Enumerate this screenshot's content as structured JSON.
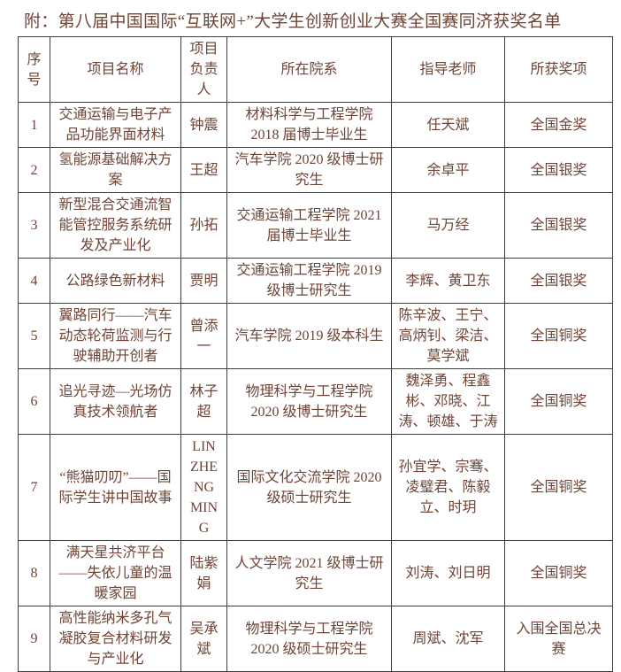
{
  "title": "附：第八届中国国际“互联网+”大学生创新创业大赛全国赛同济获奖名单",
  "colors": {
    "text": "#6e4437",
    "border": "#3d3d3d",
    "background": "#ffffff"
  },
  "table": {
    "headers": [
      "序号",
      "项目名称",
      "项目负责人",
      "所在院系",
      "指导老师",
      "所获奖项"
    ],
    "rows": [
      [
        "1",
        "交通运输与电子产品功能界面材料",
        "钟震",
        "材料科学与工程学院 2018 届博士毕业生",
        "任天斌",
        "全国金奖"
      ],
      [
        "2",
        "氢能源基础解决方案",
        "王超",
        "汽车学院 2020 级博士研究生",
        "余卓平",
        "全国银奖"
      ],
      [
        "3",
        "新型混合交通流智能管控服务系统研发及产业化",
        "孙拓",
        "交通运输工程学院 2021 届博士毕业生",
        "马万经",
        "全国银奖"
      ],
      [
        "4",
        "公路绿色新材料",
        "贾明",
        "交通运输工程学院 2019 级博士研究生",
        "李辉、黄卫东",
        "全国银奖"
      ],
      [
        "5",
        "翼路同行——汽车动态轮荷监测与行驶辅助开创者",
        "曾添一",
        "汽车学院 2019 级本科生",
        "陈辛波、王宁、高炳钊、梁洁、莫学斌",
        "全国铜奖"
      ],
      [
        "6",
        "追光寻迹—光场仿真技术领航者",
        "林子超",
        "物理科学与工程学院 2020 级博士研究生",
        "魏泽勇、程鑫彬、邓晓、江涛、顿雄、于涛",
        "全国铜奖"
      ],
      [
        "7",
        "“熊猫叨叨”——国际学生讲中国故事",
        "LIN ZHENG MING",
        "国际文化交流学院 2020 级硕士研究生",
        "孙宜学、宗骞、凌璧君、陈毅立、时玥",
        "全国铜奖"
      ],
      [
        "8",
        "满天星共济平台——失依儿童的温暖家园",
        "陆紫娟",
        "人文学院 2021 级博士研究生",
        "刘涛、刘日明",
        "全国铜奖"
      ],
      [
        "9",
        "高性能纳米多孔气凝胶复合材料研发与产业化",
        "吴承斌",
        "物理科学与工程学院 2020 级硕士研究生",
        "周斌、沈军",
        "入围全国总决赛"
      ]
    ],
    "cell_names": [
      "cell-seq",
      "cell-project-name",
      "cell-leader",
      "cell-department",
      "cell-advisors",
      "cell-award"
    ]
  }
}
